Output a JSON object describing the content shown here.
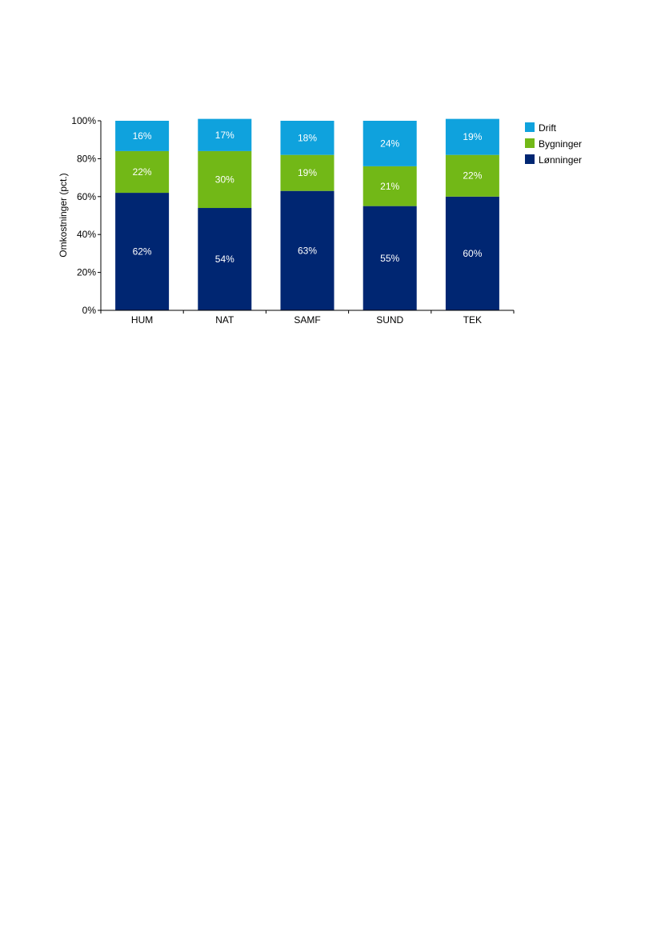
{
  "chart_data": {
    "type": "bar",
    "stacked": true,
    "categories": [
      "HUM",
      "NAT",
      "SAMF",
      "SUND",
      "TEK"
    ],
    "series": [
      {
        "name": "Lønninger",
        "values": [
          62,
          54,
          63,
          55,
          60
        ],
        "color": "#002672",
        "labels": [
          "62%",
          "54%",
          "63%",
          "55%",
          "60%"
        ]
      },
      {
        "name": "Bygninger",
        "values": [
          22,
          30,
          19,
          21,
          22
        ],
        "color": "#72b817",
        "labels": [
          "22%",
          "30%",
          "19%",
          "21%",
          "22%"
        ]
      },
      {
        "name": "Drift",
        "values": [
          16,
          17,
          18,
          24,
          19
        ],
        "color": "#0fa2dd",
        "labels": [
          "16%",
          "17%",
          "18%",
          "24%",
          "19%"
        ]
      }
    ],
    "ylabel": "Omkostninger (pct.)",
    "ylim": [
      0,
      100
    ],
    "yticks": [
      0,
      20,
      40,
      60,
      80,
      100
    ],
    "ytick_labels": [
      "0%",
      "20%",
      "40%",
      "60%",
      "80%",
      "100%"
    ],
    "legend": {
      "placement": "right",
      "order": [
        "Drift",
        "Bygninger",
        "Lønninger"
      ]
    },
    "grid": false
  }
}
